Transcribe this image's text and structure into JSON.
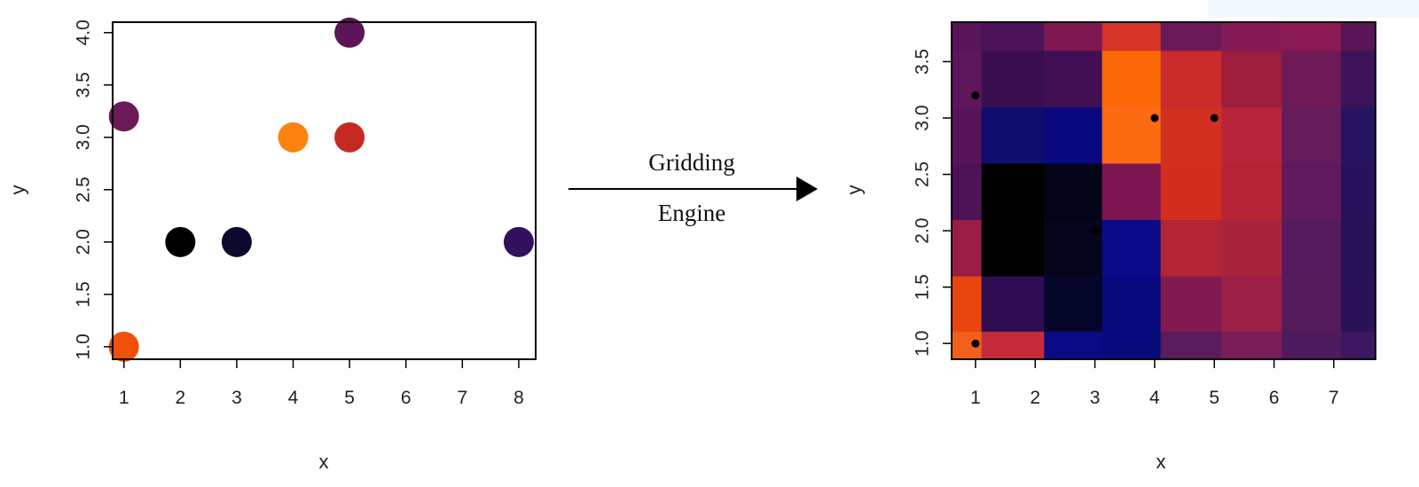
{
  "arrow": {
    "label_top": "Gridding",
    "label_bottom": "Engine"
  },
  "chart_data": [
    {
      "type": "scatter",
      "xlabel": "x",
      "ylabel": "y",
      "xlim": [
        0.8,
        8.3
      ],
      "ylim": [
        0.88,
        4.1
      ],
      "xticks": [
        1,
        2,
        3,
        4,
        5,
        6,
        7,
        8
      ],
      "yticks": [
        "1.0",
        "1.5",
        "2.0",
        "2.5",
        "3.0",
        "3.5",
        "4.0"
      ],
      "points": [
        {
          "x": 1,
          "y": 3.2,
          "color": "#6b1a57"
        },
        {
          "x": 1,
          "y": 1.0,
          "color": "#f0500a"
        },
        {
          "x": 2,
          "y": 2.0,
          "color": "#000000"
        },
        {
          "x": 3,
          "y": 2.0,
          "color": "#0b0a2e"
        },
        {
          "x": 4,
          "y": 3.0,
          "color": "#fb8311"
        },
        {
          "x": 5,
          "y": 4.0,
          "color": "#5c1556"
        },
        {
          "x": 5,
          "y": 3.0,
          "color": "#c52a22"
        },
        {
          "x": 8,
          "y": 2.0,
          "color": "#33105e"
        }
      ]
    },
    {
      "type": "heatmap",
      "xlabel": "x",
      "ylabel": "y",
      "xlim": [
        0.6,
        7.7
      ],
      "ylim": [
        0.86,
        3.85
      ],
      "xticks": [
        1,
        2,
        3,
        4,
        5,
        6,
        7
      ],
      "yticks": [
        "1.0",
        "1.5",
        "2.0",
        "2.5",
        "3.0",
        "3.5"
      ],
      "col_edges": [
        0.6,
        1.1,
        2.15,
        3.12,
        4.1,
        5.12,
        6.13,
        7.12,
        7.7
      ],
      "row_edges": [
        0.86,
        1.11,
        1.6,
        2.1,
        2.6,
        3.1,
        3.6,
        3.85
      ],
      "cells": [
        [
          "#f0601a",
          "#c42b3a",
          "#0a0a86",
          "#08097a",
          "#5a1c5c",
          "#7a1d58",
          "#4e1a5e",
          "#3c1660"
        ],
        [
          "#e8450f",
          "#2e0d52",
          "#06062a",
          "#07087c",
          "#821a50",
          "#9a2045",
          "#541b5a",
          "#2b1258"
        ],
        [
          "#9a1d45",
          "#000000",
          "#05051c",
          "#0a0a88",
          "#b12535",
          "#a8233e",
          "#551a5c",
          "#281258"
        ],
        [
          "#4c1256",
          "#000000",
          "#040418",
          "#7d1552",
          "#d32d20",
          "#b42435",
          "#5e1a5c",
          "#28125c"
        ],
        [
          "#561558",
          "#0f0d6e",
          "#09087e",
          "#fc6a12",
          "#d03020",
          "#b8243a",
          "#641c5a",
          "#261460"
        ],
        [
          "#5c165a",
          "#3a0f52",
          "#420f54",
          "#fc6808",
          "#c92a2a",
          "#9c1d3c",
          "#6e1a56",
          "#3c1258"
        ],
        [
          "#581658",
          "#4c1358",
          "#7e1850",
          "#d63528",
          "#6a1858",
          "#861a56",
          "#8a1a52",
          "#5a1556"
        ]
      ],
      "points": [
        {
          "x": 1,
          "y": 3.2
        },
        {
          "x": 1,
          "y": 1.0
        },
        {
          "x": 3,
          "y": 2.0
        },
        {
          "x": 4,
          "y": 3.0
        },
        {
          "x": 5,
          "y": 3.0
        }
      ]
    }
  ]
}
